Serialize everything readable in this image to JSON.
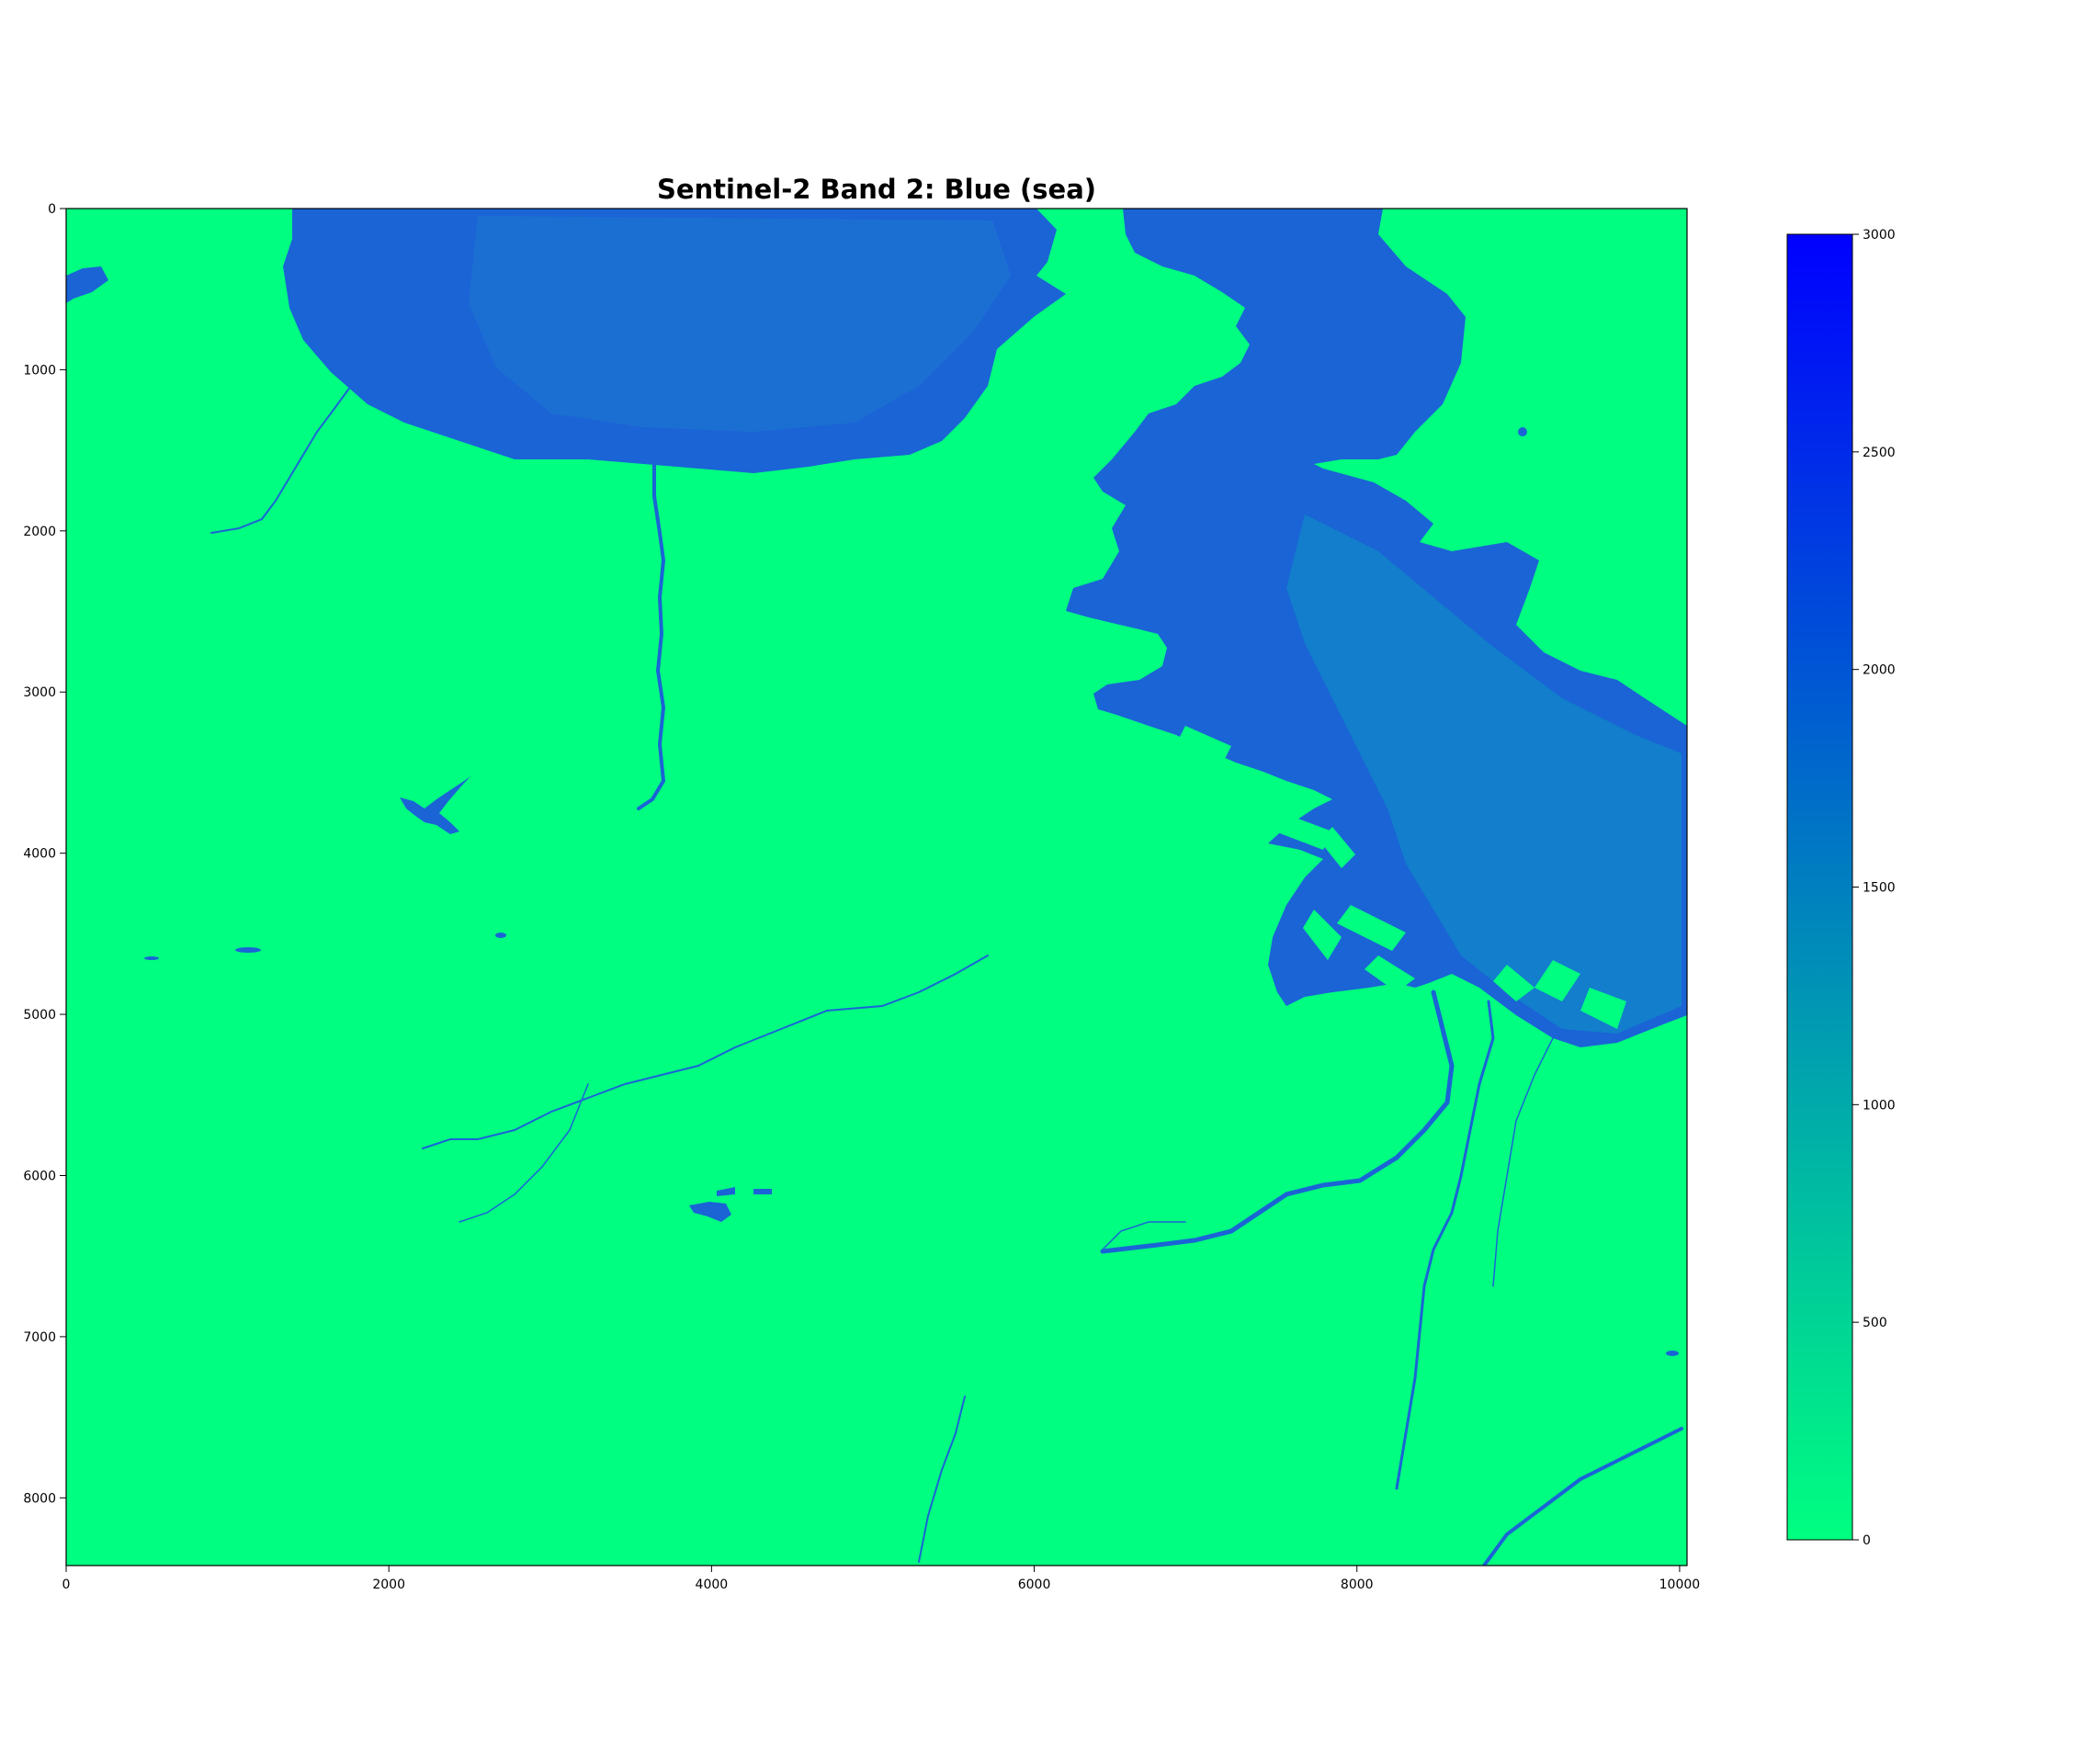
{
  "chart_data": {
    "type": "heatmap",
    "title": "Sentinel-2 Band 2: Blue (sea)",
    "xlabel": "",
    "ylabel": "",
    "xlim": [
      0,
      10046
    ],
    "ylim": [
      8420,
      0
    ],
    "x_ticks": [
      0,
      2000,
      4000,
      6000,
      8000,
      10000
    ],
    "y_ticks": [
      0,
      1000,
      2000,
      3000,
      4000,
      5000,
      6000,
      7000,
      8000
    ],
    "x_tick_labels": [
      "0",
      "2000",
      "4000",
      "6000",
      "8000",
      "10000"
    ],
    "y_tick_labels": [
      "0",
      "1000",
      "2000",
      "3000",
      "4000",
      "5000",
      "6000",
      "7000",
      "8000"
    ],
    "grid": false,
    "colormap": "winter",
    "colorbar": {
      "vmin": 0,
      "vmax": 3000,
      "ticks": [
        0,
        500,
        1000,
        1500,
        2000,
        2500,
        3000
      ],
      "tick_labels": [
        "0",
        "500",
        "1000",
        "1500",
        "2000",
        "2500",
        "3000"
      ],
      "color_low": "#00ff80",
      "color_high": "#0000ff"
    },
    "background_value_color": "#00ff80",
    "water_value_color": "#1565d8",
    "regions": [
      {
        "name": "northern bay",
        "value": 1600
      },
      {
        "name": "eastern harbor",
        "value": 1500
      },
      {
        "name": "small western lake",
        "value": 1800
      },
      {
        "name": "small southern pond",
        "value": 1800
      },
      {
        "name": "rivers",
        "value": 1900
      }
    ]
  }
}
